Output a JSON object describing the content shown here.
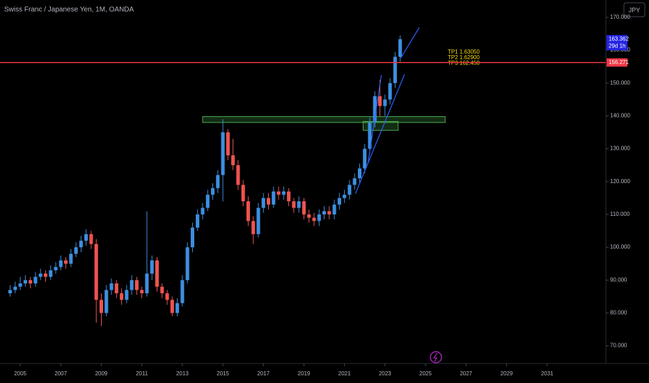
{
  "chart_data": {
    "type": "candlestick",
    "title": "Swiss Franc / Japanese Yen, 1M, OANDA",
    "currency_button": "JPY",
    "x": [
      2004.5,
      2004.75,
      2005,
      2005.25,
      2005.5,
      2005.75,
      2006,
      2006.25,
      2006.5,
      2006.75,
      2007,
      2007.25,
      2007.5,
      2007.75,
      2008,
      2008.25,
      2008.5,
      2008.75,
      2009,
      2009.25,
      2009.5,
      2009.75,
      2010,
      2010.25,
      2010.5,
      2010.75,
      2011,
      2011.25,
      2011.5,
      2011.75,
      2012,
      2012.25,
      2012.5,
      2012.75,
      2013,
      2013.25,
      2013.5,
      2013.75,
      2014,
      2014.25,
      2014.5,
      2014.75,
      2015,
      2015.25,
      2015.5,
      2015.75,
      2016,
      2016.25,
      2016.5,
      2016.75,
      2017,
      2017.25,
      2017.5,
      2017.75,
      2018,
      2018.25,
      2018.5,
      2018.75,
      2019,
      2019.25,
      2019.5,
      2019.75,
      2020,
      2020.25,
      2020.5,
      2020.75,
      2021,
      2021.25,
      2021.5,
      2021.75,
      2022,
      2022.25,
      2022.5,
      2022.75,
      2023,
      2023.25,
      2023.5,
      2023.75
    ],
    "ohlc": [
      [
        86,
        88.5,
        85,
        87
      ],
      [
        87,
        89.5,
        86,
        88
      ],
      [
        88,
        91,
        87,
        89
      ],
      [
        89,
        91.5,
        88,
        90
      ],
      [
        90,
        91,
        87.5,
        89
      ],
      [
        89,
        92.5,
        88,
        91
      ],
      [
        91,
        93.5,
        90,
        92
      ],
      [
        92,
        93,
        89.5,
        91
      ],
      [
        91,
        94.5,
        90,
        93
      ],
      [
        93,
        95.5,
        92,
        94
      ],
      [
        94,
        97.5,
        93,
        96
      ],
      [
        96,
        97,
        93.5,
        95
      ],
      [
        95,
        99.5,
        94,
        98
      ],
      [
        98,
        101.5,
        97,
        100
      ],
      [
        100,
        103.5,
        98.5,
        102
      ],
      [
        102,
        105.5,
        100.5,
        104
      ],
      [
        104,
        105,
        99.5,
        101
      ],
      [
        101,
        102.5,
        77,
        84
      ],
      [
        84,
        86,
        76,
        80
      ],
      [
        80,
        88.5,
        79,
        87
      ],
      [
        87,
        90.5,
        85.5,
        89
      ],
      [
        89,
        90,
        84.5,
        86
      ],
      [
        86,
        87.5,
        82.5,
        84
      ],
      [
        84,
        88.5,
        83,
        87
      ],
      [
        87,
        91.5,
        85.5,
        90
      ],
      [
        90,
        91,
        85.5,
        87
      ],
      [
        87,
        88,
        84.5,
        86
      ],
      [
        86,
        111,
        85,
        92
      ],
      [
        92,
        97.5,
        90,
        96
      ],
      [
        96,
        97,
        86.5,
        88
      ],
      [
        88,
        89,
        84.5,
        86
      ],
      [
        86,
        87,
        82.5,
        84
      ],
      [
        84,
        85,
        79,
        80
      ],
      [
        80,
        84.5,
        79,
        83
      ],
      [
        83,
        91.5,
        82,
        90
      ],
      [
        90,
        101.5,
        89,
        100
      ],
      [
        100,
        107.5,
        98.5,
        106
      ],
      [
        106,
        111.5,
        105,
        110
      ],
      [
        110,
        113.5,
        108.5,
        112
      ],
      [
        112,
        117.5,
        111,
        116
      ],
      [
        116,
        119.5,
        114.5,
        118
      ],
      [
        118,
        123.5,
        116.5,
        122
      ],
      [
        122,
        139,
        114,
        135
      ],
      [
        135,
        136,
        126.5,
        128
      ],
      [
        128,
        133,
        123.5,
        125
      ],
      [
        125,
        126.5,
        117.5,
        119
      ],
      [
        119,
        120.5,
        112.5,
        114
      ],
      [
        114,
        115.5,
        106.5,
        108
      ],
      [
        108,
        109.5,
        101,
        104
      ],
      [
        104,
        113.5,
        103,
        112
      ],
      [
        112,
        116.5,
        110.5,
        115
      ],
      [
        115,
        116.5,
        111.5,
        113
      ],
      [
        113,
        118.5,
        112,
        117
      ],
      [
        117,
        118.5,
        114.5,
        116
      ],
      [
        116,
        118.5,
        114.5,
        117
      ],
      [
        117,
        118,
        112.5,
        114
      ],
      [
        114,
        115,
        110.5,
        112
      ],
      [
        112,
        115.5,
        110.5,
        114
      ],
      [
        114,
        115,
        108.5,
        110
      ],
      [
        110,
        111.5,
        107.5,
        109
      ],
      [
        109,
        110.5,
        106.5,
        108
      ],
      [
        108,
        111.5,
        106.5,
        110
      ],
      [
        110,
        112.5,
        108.5,
        111
      ],
      [
        111,
        112.5,
        108.5,
        110
      ],
      [
        110,
        114.5,
        108.5,
        113
      ],
      [
        113,
        116.5,
        111.5,
        115
      ],
      [
        115,
        117.5,
        113.5,
        116
      ],
      [
        116,
        120.5,
        114.5,
        119
      ],
      [
        119,
        122.5,
        117.5,
        121
      ],
      [
        121,
        125.5,
        119.5,
        124
      ],
      [
        124,
        131.5,
        122.5,
        130
      ],
      [
        130,
        139.5,
        128.5,
        138
      ],
      [
        138,
        147.5,
        136.5,
        146
      ],
      [
        146,
        151,
        140,
        143
      ],
      [
        143,
        146.5,
        140,
        145
      ],
      [
        145,
        151.5,
        143.5,
        150
      ],
      [
        150,
        159.5,
        148.5,
        158
      ],
      [
        158,
        164.5,
        156.5,
        163.362
      ]
    ],
    "up_color": "#3d8fe0",
    "down_color": "#ef5350",
    "xlim": [
      2004.0,
      2033.9
    ],
    "ylim": [
      64.62,
      175.29
    ],
    "xticks": [
      2005,
      2007,
      2009,
      2011,
      2013,
      2015,
      2017,
      2019,
      2021,
      2023,
      2025,
      2027,
      2029,
      2031
    ],
    "yticks": [
      {
        "value": 70,
        "label": "70.000"
      },
      {
        "value": 80,
        "label": "80.000"
      },
      {
        "value": 90,
        "label": "90.000"
      },
      {
        "value": 100,
        "label": "100.000"
      },
      {
        "value": 110,
        "label": "110.000"
      },
      {
        "value": 120,
        "label": "120.000"
      },
      {
        "value": 130,
        "label": "130.000"
      },
      {
        "value": 140,
        "label": "140.000"
      },
      {
        "value": 150,
        "label": "150.000"
      },
      {
        "value": 160,
        "label": "160.000"
      },
      {
        "value": 170,
        "label": "170.000"
      }
    ],
    "horizontal_line": {
      "value": 156.271,
      "label": "156.271",
      "color": "#f23645"
    },
    "last_price": {
      "value": 163.362,
      "label": "163.362",
      "countdown": "29d 1h",
      "color": "#2424e6"
    },
    "zones": [
      {
        "x": [
          2014.0,
          2025.97
        ],
        "y": [
          138.0,
          139.8
        ],
        "color": "#4caf50"
      },
      {
        "x": [
          2021.92,
          2023.65
        ],
        "y": [
          135.6,
          138.3
        ],
        "color": "#4caf50"
      }
    ],
    "trend_lines": [
      {
        "x": [
          2021.54,
          2023.96
        ],
        "y": [
          116.3,
          152.6
        ]
      },
      {
        "x": [
          2022.16,
          2022.82
        ],
        "y": [
          125.5,
          152.4
        ]
      },
      {
        "x": [
          2023.79,
          2024.69
        ],
        "y": [
          157.7,
          166.9
        ]
      }
    ],
    "annotations": [
      "TP1 1.63050",
      "TP2 1.62900",
      "TP3 162.450"
    ]
  }
}
